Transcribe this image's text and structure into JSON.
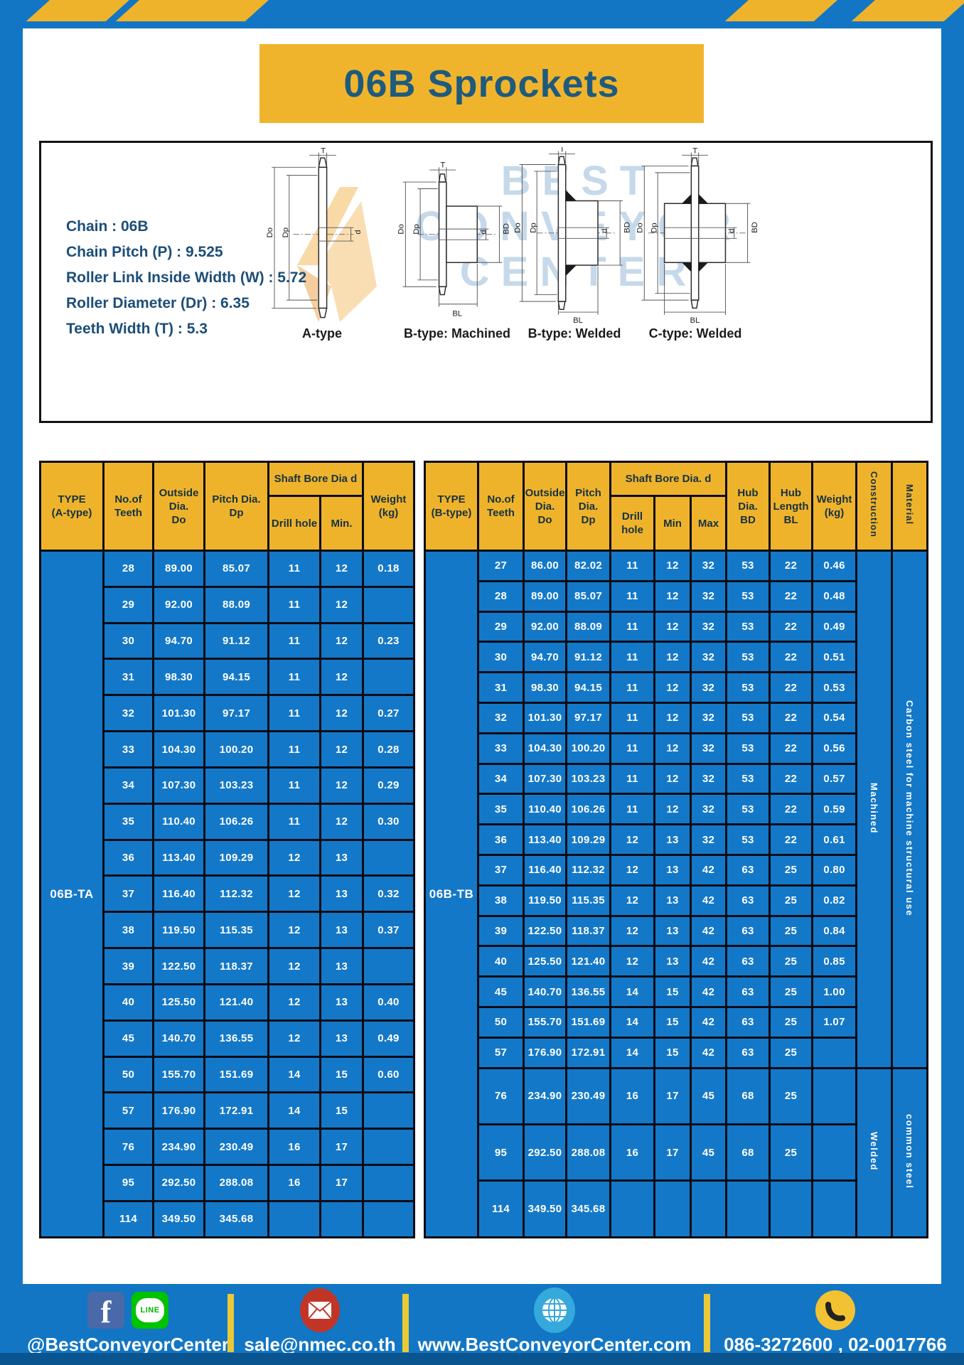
{
  "page": {
    "title": "06B Sprockets"
  },
  "colors": {
    "frame_blue": "#1276C4",
    "table_blue": "#1478C8",
    "accent_yellow": "#EFB32B",
    "title_text": "#1E5A7D",
    "spec_text": "#1D4E78",
    "border_black": "#0C0C16",
    "footer_divider_yellow": "#E9C937"
  },
  "specs": {
    "lines": [
      "Chain : 06B",
      "Chain Pitch (P) : 9.525",
      "Roller Link Inside Width (W) : 5.72",
      "Roller Diameter (Dr) : 6.35",
      "Teeth Width (T) : 5.3"
    ]
  },
  "diagrams": {
    "watermark_lines": [
      "BEST",
      "CONVEYOR",
      "CENTER"
    ],
    "items": [
      {
        "caption": "A-type",
        "dims": {
          "t": "T",
          "do": "Do",
          "dp": "Dp",
          "d": "d"
        }
      },
      {
        "caption": "B-type: Machined",
        "dims": {
          "t": "T",
          "do": "Do",
          "dp": "Dp",
          "d": "d",
          "bd": "BD",
          "bl": "BL"
        }
      },
      {
        "caption": "B-type: Welded",
        "dims": {
          "t": "T",
          "do": "Do",
          "dp": "Dp",
          "d": "d",
          "bd": "BD",
          "bl": "BL"
        }
      },
      {
        "caption": "C-type: Welded",
        "dims": {
          "t": "T",
          "do": "Do",
          "dp": "Dp",
          "d": "d",
          "bd": "BD",
          "bl": "BL"
        }
      }
    ]
  },
  "tableA": {
    "type_label": "06B-TA",
    "headers": {
      "type": "TYPE\n(A-type)",
      "teeth": "No.of\nTeeth",
      "outside": "Outside\nDia.\nDo",
      "pitch": "Pitch Dia.\nDp",
      "shaft_group": "Shaft Bore Dia d",
      "drill": "Drill hole",
      "min": "Min.",
      "weight": "Weight\n(kg)"
    },
    "rows": [
      [
        "28",
        "89.00",
        "85.07",
        "11",
        "12",
        "0.18"
      ],
      [
        "29",
        "92.00",
        "88.09",
        "11",
        "12",
        ""
      ],
      [
        "30",
        "94.70",
        "91.12",
        "11",
        "12",
        "0.23"
      ],
      [
        "31",
        "98.30",
        "94.15",
        "11",
        "12",
        ""
      ],
      [
        "32",
        "101.30",
        "97.17",
        "11",
        "12",
        "0.27"
      ],
      [
        "33",
        "104.30",
        "100.20",
        "11",
        "12",
        "0.28"
      ],
      [
        "34",
        "107.30",
        "103.23",
        "11",
        "12",
        "0.29"
      ],
      [
        "35",
        "110.40",
        "106.26",
        "11",
        "12",
        "0.30"
      ],
      [
        "36",
        "113.40",
        "109.29",
        "12",
        "13",
        ""
      ],
      [
        "37",
        "116.40",
        "112.32",
        "12",
        "13",
        "0.32"
      ],
      [
        "38",
        "119.50",
        "115.35",
        "12",
        "13",
        "0.37"
      ],
      [
        "39",
        "122.50",
        "118.37",
        "12",
        "13",
        ""
      ],
      [
        "40",
        "125.50",
        "121.40",
        "12",
        "13",
        "0.40"
      ],
      [
        "45",
        "140.70",
        "136.55",
        "12",
        "13",
        "0.49"
      ],
      [
        "50",
        "155.70",
        "151.69",
        "14",
        "15",
        "0.60"
      ],
      [
        "57",
        "176.90",
        "172.91",
        "14",
        "15",
        ""
      ],
      [
        "76",
        "234.90",
        "230.49",
        "16",
        "17",
        ""
      ],
      [
        "95",
        "292.50",
        "288.08",
        "16",
        "17",
        ""
      ],
      [
        "114",
        "349.50",
        "345.68",
        "",
        "",
        ""
      ]
    ]
  },
  "tableB": {
    "type_label": "06B-TB",
    "headers": {
      "type": "TYPE\n(B-type)",
      "teeth": "No.of\nTeeth",
      "outside": "Outside\nDia.\nDo",
      "pitch": "Pitch\nDia.\nDp",
      "shaft_group": "Shaft Bore Dia. d",
      "drill": "Drill hole",
      "min": "Min",
      "max": "Max",
      "hub_dia": "Hub\nDia.\nBD",
      "hub_len": "Hub\nLength\nBL",
      "weight": "Weight\n(kg)",
      "construction": "Construction",
      "material": "Material"
    },
    "rows": [
      [
        "27",
        "86.00",
        "82.02",
        "11",
        "12",
        "32",
        "53",
        "22",
        "0.46"
      ],
      [
        "28",
        "89.00",
        "85.07",
        "11",
        "12",
        "32",
        "53",
        "22",
        "0.48"
      ],
      [
        "29",
        "92.00",
        "88.09",
        "11",
        "12",
        "32",
        "53",
        "22",
        "0.49"
      ],
      [
        "30",
        "94.70",
        "91.12",
        "11",
        "12",
        "32",
        "53",
        "22",
        "0.51"
      ],
      [
        "31",
        "98.30",
        "94.15",
        "11",
        "12",
        "32",
        "53",
        "22",
        "0.53"
      ],
      [
        "32",
        "101.30",
        "97.17",
        "11",
        "12",
        "32",
        "53",
        "22",
        "0.54"
      ],
      [
        "33",
        "104.30",
        "100.20",
        "11",
        "12",
        "32",
        "53",
        "22",
        "0.56"
      ],
      [
        "34",
        "107.30",
        "103.23",
        "11",
        "12",
        "32",
        "53",
        "22",
        "0.57"
      ],
      [
        "35",
        "110.40",
        "106.26",
        "11",
        "12",
        "32",
        "53",
        "22",
        "0.59"
      ],
      [
        "36",
        "113.40",
        "109.29",
        "12",
        "13",
        "32",
        "53",
        "22",
        "0.61"
      ],
      [
        "37",
        "116.40",
        "112.32",
        "12",
        "13",
        "42",
        "63",
        "25",
        "0.80"
      ],
      [
        "38",
        "119.50",
        "115.35",
        "12",
        "13",
        "42",
        "63",
        "25",
        "0.82"
      ],
      [
        "39",
        "122.50",
        "118.37",
        "12",
        "13",
        "42",
        "63",
        "25",
        "0.84"
      ],
      [
        "40",
        "125.50",
        "121.40",
        "12",
        "13",
        "42",
        "63",
        "25",
        "0.85"
      ],
      [
        "45",
        "140.70",
        "136.55",
        "14",
        "15",
        "42",
        "63",
        "25",
        "1.00"
      ],
      [
        "50",
        "155.70",
        "151.69",
        "14",
        "15",
        "42",
        "63",
        "25",
        "1.07"
      ],
      [
        "57",
        "176.90",
        "172.91",
        "14",
        "15",
        "42",
        "63",
        "25",
        ""
      ],
      [
        "76",
        "234.90",
        "230.49",
        "16",
        "17",
        "45",
        "68",
        "25",
        ""
      ],
      [
        "95",
        "292.50",
        "288.08",
        "16",
        "17",
        "45",
        "68",
        "25",
        ""
      ],
      [
        "114",
        "349.50",
        "345.68",
        "",
        "",
        "",
        "",
        "",
        ""
      ]
    ],
    "construction": [
      {
        "label": "Machined",
        "span": 17
      },
      {
        "label": "Welded",
        "span": 3
      }
    ],
    "material": [
      {
        "label": "Carbon steel for machine structural use",
        "span": 17
      },
      {
        "label": "common steel",
        "span": 3
      }
    ]
  },
  "footer": {
    "facebook_label": "f",
    "line_label": "LINE",
    "sections": [
      {
        "text": "@BestConveyorCenter"
      },
      {
        "text": "sale@nmec.co.th"
      },
      {
        "text": "www.BestConveyorCenter.com"
      },
      {
        "text": "086-3272600 , 02-0017766"
      }
    ]
  }
}
